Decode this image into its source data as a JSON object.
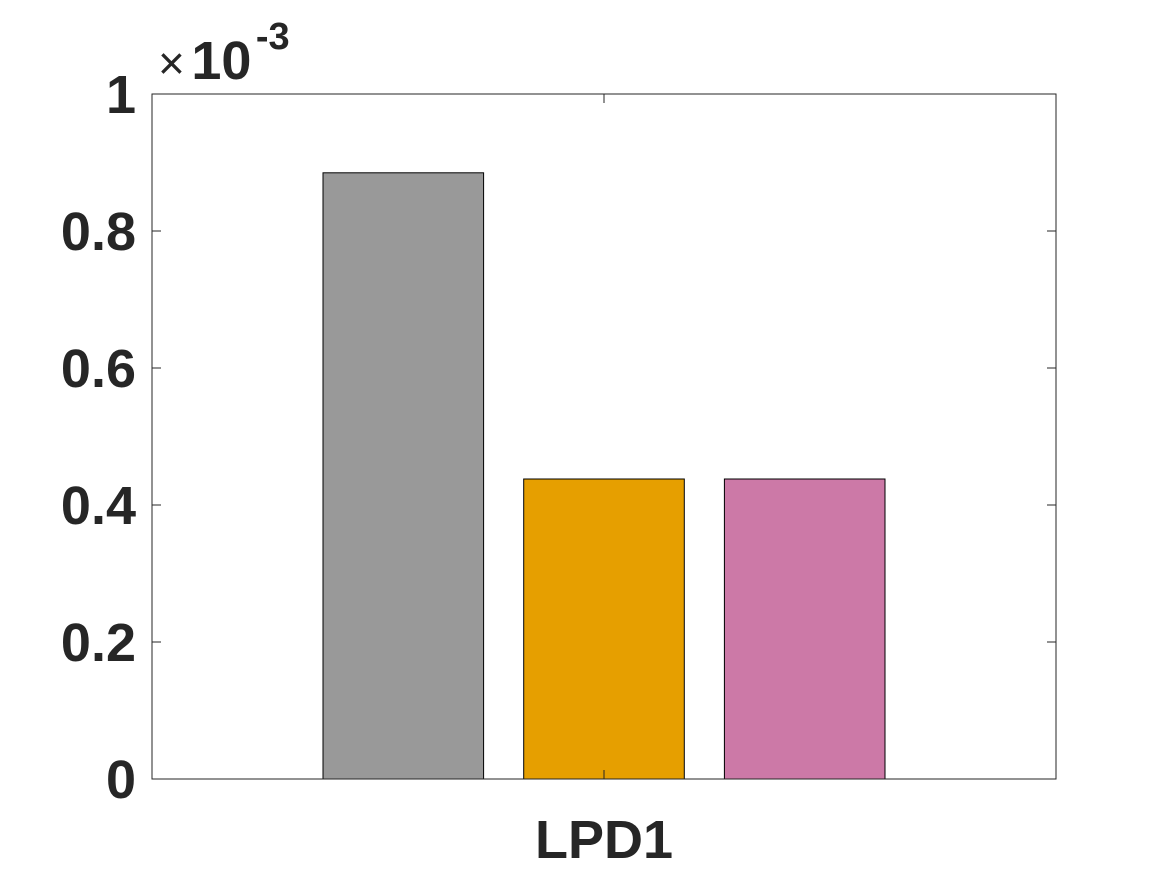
{
  "chart_data": {
    "type": "bar",
    "categories": [
      "LPD1"
    ],
    "series": [
      {
        "values": [
          0.000885
        ]
      },
      {
        "values": [
          0.000438
        ]
      },
      {
        "values": [
          0.000438
        ]
      }
    ],
    "colors": [
      "#999999",
      "#E69F00",
      "#CC79A7"
    ],
    "ylim": [
      0,
      0.001
    ],
    "yticks": [
      0,
      0.0002,
      0.0004,
      0.0006,
      0.0008,
      0.001
    ],
    "ytick_labels": [
      "0",
      "0.2",
      "0.4",
      "0.6",
      "0.8",
      "1"
    ],
    "y_multiplier": {
      "times": "×",
      "base": "10",
      "exponent": "-3"
    },
    "xtick_labels": [
      "LPD1"
    ],
    "title": "",
    "xlabel": "",
    "ylabel": "",
    "grid": false,
    "box": true
  }
}
